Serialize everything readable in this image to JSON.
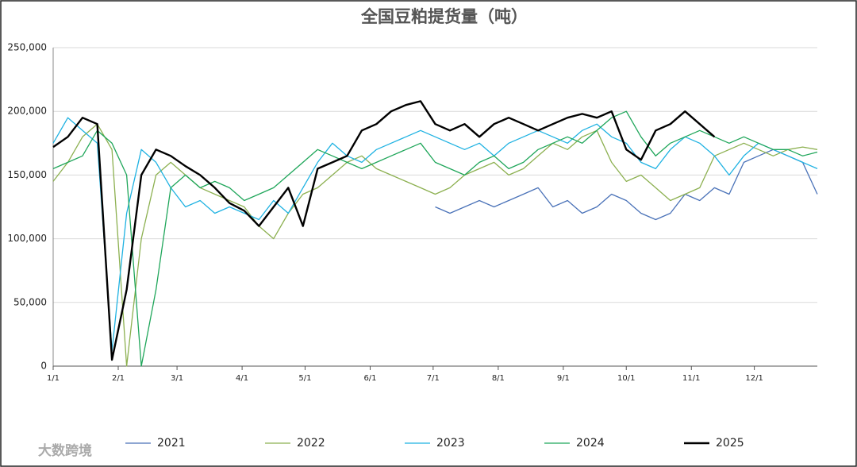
{
  "chart_data": {
    "type": "line",
    "title": "全国豆粕提货量（吨）",
    "brand": "大数跨境",
    "x": [
      "1/1",
      "1/8",
      "1/15",
      "1/22",
      "1/29",
      "2/5",
      "2/12",
      "2/19",
      "2/26",
      "3/5",
      "3/12",
      "3/19",
      "3/26",
      "4/2",
      "4/9",
      "4/16",
      "4/23",
      "4/30",
      "5/7",
      "5/14",
      "5/21",
      "5/28",
      "6/4",
      "6/11",
      "6/18",
      "6/25",
      "7/2",
      "7/9",
      "7/16",
      "7/23",
      "7/30",
      "8/6",
      "8/13",
      "8/20",
      "8/27",
      "9/3",
      "9/10",
      "9/17",
      "9/24",
      "10/1",
      "10/8",
      "10/15",
      "10/22",
      "10/29",
      "11/5",
      "11/12",
      "11/19",
      "11/26",
      "12/3",
      "12/10",
      "12/17",
      "12/24",
      "12/31"
    ],
    "xticks": [
      "1/1",
      "2/1",
      "3/1",
      "4/1",
      "5/1",
      "6/1",
      "7/1",
      "8/1",
      "9/1",
      "10/1",
      "11/1",
      "12/1"
    ],
    "ylim": [
      0,
      250000
    ],
    "yticks": [
      0,
      {
        "value": 50000,
        "label": "50,000"
      },
      {
        "value": 100000,
        "label": "100,000"
      },
      {
        "value": 150000,
        "label": "150,000"
      },
      {
        "value": 200000,
        "label": "200,000"
      },
      {
        "value": 250000,
        "label": "250,000"
      }
    ],
    "grid": true,
    "series": [
      {
        "name": "2021",
        "color": "#4a72b8",
        "width": 1.3,
        "values": [
          null,
          null,
          null,
          null,
          null,
          null,
          null,
          null,
          null,
          null,
          null,
          null,
          null,
          null,
          null,
          null,
          null,
          null,
          null,
          null,
          null,
          null,
          null,
          null,
          null,
          null,
          125000,
          120000,
          125000,
          130000,
          125000,
          130000,
          135000,
          140000,
          125000,
          130000,
          120000,
          125000,
          135000,
          130000,
          120000,
          115000,
          120000,
          135000,
          130000,
          140000,
          135000,
          160000,
          165000,
          170000,
          165000,
          160000,
          135000
        ]
      },
      {
        "name": "2022",
        "color": "#8cb050",
        "width": 1.3,
        "values": [
          145000,
          160000,
          180000,
          190000,
          170000,
          0,
          100000,
          150000,
          160000,
          150000,
          140000,
          135000,
          130000,
          125000,
          110000,
          100000,
          120000,
          135000,
          140000,
          150000,
          160000,
          165000,
          155000,
          150000,
          145000,
          140000,
          135000,
          140000,
          150000,
          155000,
          160000,
          150000,
          155000,
          165000,
          175000,
          170000,
          180000,
          185000,
          160000,
          145000,
          150000,
          140000,
          130000,
          135000,
          140000,
          165000,
          170000,
          175000,
          170000,
          165000,
          170000,
          172000,
          170000
        ]
      },
      {
        "name": "2023",
        "color": "#1fb2e2",
        "width": 1.3,
        "values": [
          175000,
          195000,
          185000,
          175000,
          12000,
          120000,
          170000,
          160000,
          140000,
          125000,
          130000,
          120000,
          125000,
          120000,
          115000,
          130000,
          120000,
          140000,
          160000,
          175000,
          165000,
          160000,
          170000,
          175000,
          180000,
          185000,
          180000,
          175000,
          170000,
          175000,
          165000,
          175000,
          180000,
          185000,
          180000,
          175000,
          185000,
          190000,
          180000,
          175000,
          160000,
          155000,
          170000,
          180000,
          175000,
          165000,
          150000,
          165000,
          175000,
          170000,
          165000,
          160000,
          155000
        ]
      },
      {
        "name": "2024",
        "color": "#1fa65a",
        "width": 1.3,
        "values": [
          155000,
          160000,
          165000,
          185000,
          175000,
          150000,
          0,
          60000,
          140000,
          150000,
          140000,
          145000,
          140000,
          130000,
          135000,
          140000,
          150000,
          160000,
          170000,
          165000,
          160000,
          155000,
          160000,
          165000,
          170000,
          175000,
          160000,
          155000,
          150000,
          160000,
          165000,
          155000,
          160000,
          170000,
          175000,
          180000,
          175000,
          185000,
          195000,
          200000,
          180000,
          165000,
          175000,
          180000,
          185000,
          180000,
          175000,
          180000,
          175000,
          170000,
          170000,
          165000,
          168000
        ]
      },
      {
        "name": "2025",
        "color": "#000000",
        "width": 2.4,
        "values": [
          172000,
          180000,
          195000,
          190000,
          5000,
          60000,
          150000,
          170000,
          165000,
          157000,
          150000,
          140000,
          128000,
          122000,
          110000,
          125000,
          140000,
          110000,
          155000,
          160000,
          165000,
          185000,
          190000,
          200000,
          205000,
          208000,
          190000,
          185000,
          190000,
          180000,
          190000,
          195000,
          190000,
          185000,
          190000,
          195000,
          198000,
          195000,
          200000,
          170000,
          162000,
          185000,
          190000,
          200000,
          190000,
          180000,
          null,
          null,
          null,
          null,
          null,
          null,
          null
        ]
      }
    ]
  }
}
